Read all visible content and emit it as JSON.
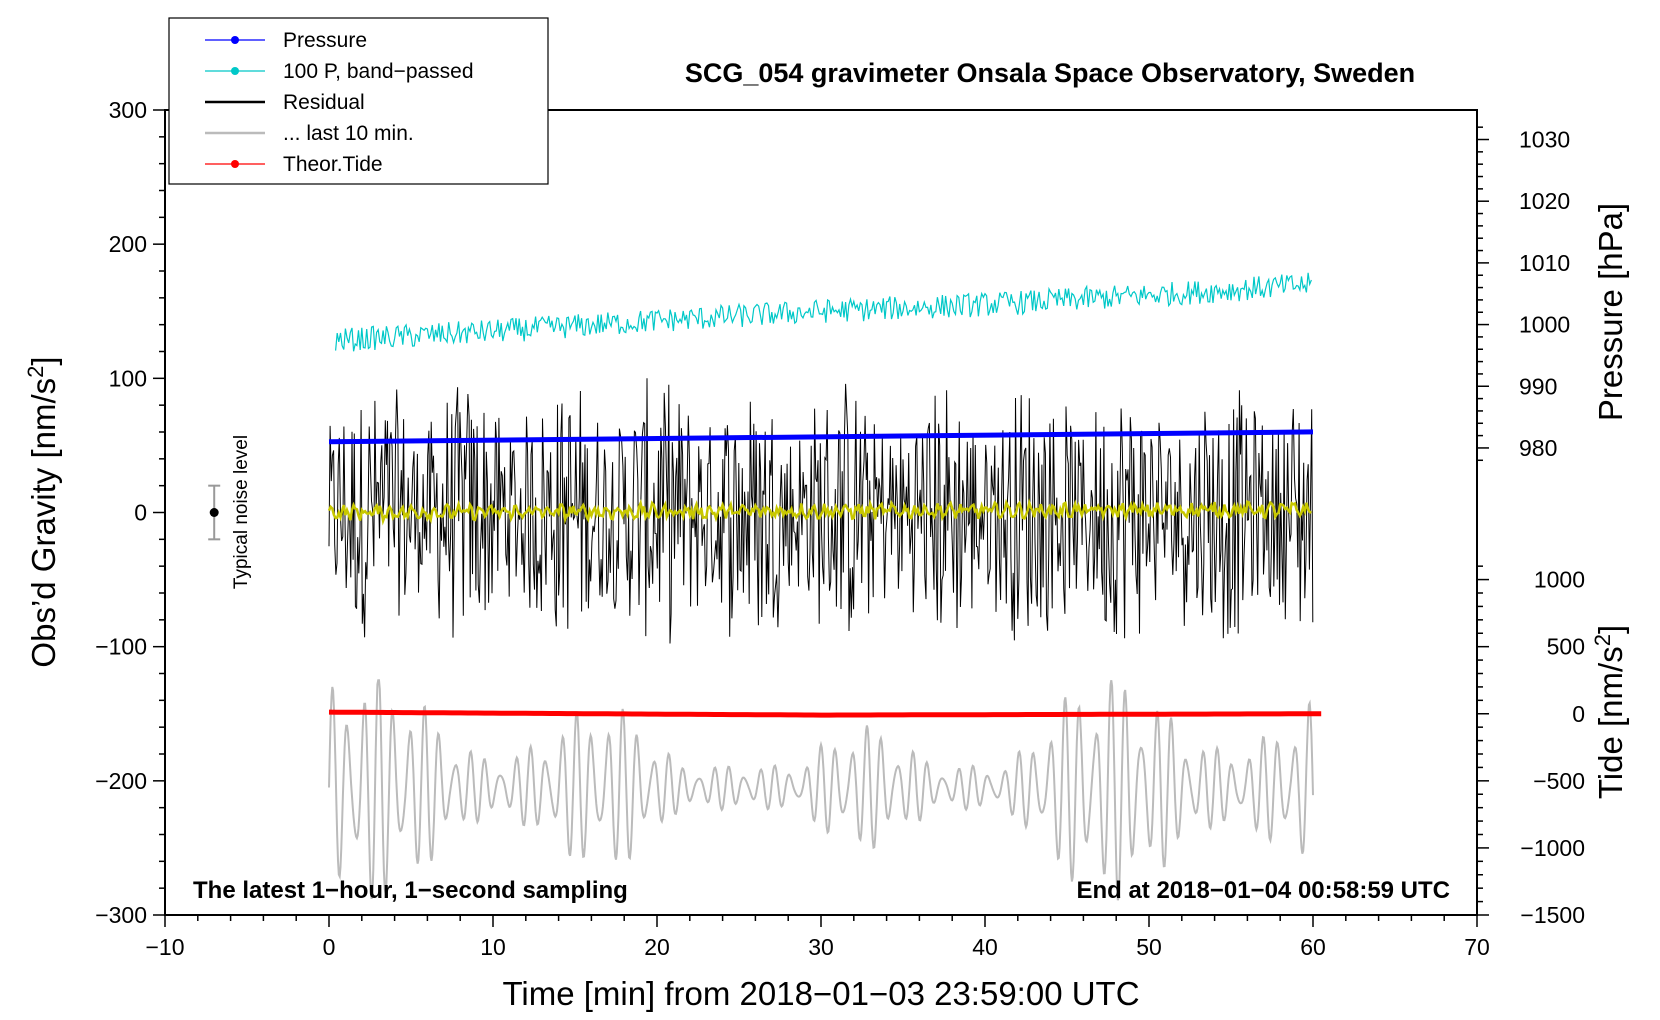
{
  "chart_data": {
    "type": "line",
    "title": "SCG_054 gravimeter Onsala Space Observatory, Sweden",
    "annotation_left": "The latest 1−hour, 1−second sampling",
    "annotation_right": "End at 2018−01−04 00:58:59 UTC",
    "noise_label": "Typical noise level",
    "noise_bar": {
      "x": -7,
      "center": 0,
      "low": -20,
      "high": 20
    },
    "xlabel": "Time [min] from 2018−01−03 23:59:00 UTC",
    "ylabel_left": "Obs’d Gravity [nm/s",
    "ylabel_left_sup": "2",
    "ylabel_left_close": "]",
    "ylabel_right_top": "Pressure [hPa]",
    "ylabel_right_bottom": "Tide [nm/s",
    "ylabel_right_bottom_sup": "2",
    "ylabel_right_bottom_close": "]",
    "xlim": [
      -10,
      70
    ],
    "ylim": [
      -300,
      300
    ],
    "x_ticks": [
      "−10",
      "0",
      "10",
      "20",
      "30",
      "40",
      "50",
      "60",
      "70"
    ],
    "y_ticks_left": [
      "300",
      "200",
      "100",
      "0",
      "−100",
      "−200",
      "−300"
    ],
    "pressure_axis": {
      "ticks": [
        "1030",
        "1020",
        "1010",
        "1000",
        "990",
        "980"
      ],
      "ref_value": 1030,
      "ref_gravity": 278,
      "hpa_per_unit": 0.2175
    },
    "tide_axis": {
      "ticks": [
        "1000",
        "500",
        "0",
        "−500",
        "−1000",
        "−1500"
      ],
      "zero_gravity": -150,
      "per_unit": 10
    },
    "legend": [
      {
        "label": "Pressure",
        "color": "#0000ff",
        "marker": true
      },
      {
        "label": "100 P, band−passed",
        "color": "#00c8c8",
        "marker": true
      },
      {
        "label": "Residual",
        "color": "#000000",
        "marker": false
      },
      {
        "label": "... last 10 min.",
        "color": "#bbbbbb",
        "marker": false
      },
      {
        "label": "Theor.Tide",
        "color": "#ff0000",
        "marker": true
      }
    ],
    "series": [
      {
        "name": "Pressure",
        "color": "#0000ff",
        "axis": "pressure_hPa",
        "x": [
          0,
          60
        ],
        "values": [
          981.0,
          982.6
        ]
      },
      {
        "name": "100 P, band−passed",
        "color": "#00c8c8",
        "axis": "gravity",
        "x": [
          0,
          10,
          20,
          30,
          40,
          50,
          60
        ],
        "values": [
          128,
          135,
          143,
          150,
          155,
          162,
          170
        ],
        "noise_amplitude": 9
      },
      {
        "name": "Residual",
        "color": "#000000",
        "axis": "gravity",
        "x": [
          0,
          60
        ],
        "values": [
          0,
          0
        ],
        "range": [
          -115,
          118
        ]
      },
      {
        "name": "Residual (smoothed)",
        "color": "#c8c800",
        "axis": "gravity",
        "x": [
          0,
          60
        ],
        "values": [
          0,
          2
        ]
      },
      {
        "name": "... last 10 min.",
        "color": "#bbbbbb",
        "axis": "gravity",
        "x": [
          0,
          60
        ],
        "values": [
          -205,
          -165
        ],
        "range": [
          -300,
          -125
        ]
      },
      {
        "name": "Theor.Tide",
        "color": "#ff0000",
        "axis": "tide",
        "x": [
          0,
          30,
          60.5
        ],
        "values": [
          12,
          -10,
          0
        ]
      }
    ]
  }
}
